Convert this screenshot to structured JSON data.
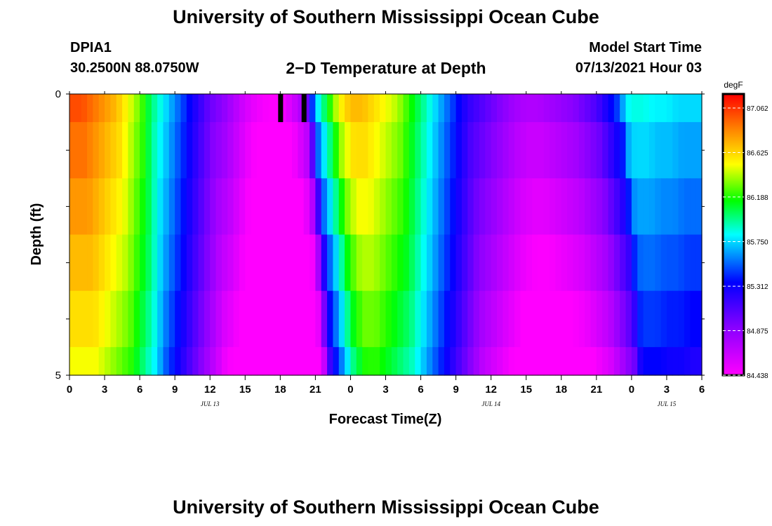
{
  "header": {
    "title": "University of Southern Mississippi Ocean Cube",
    "station": "DPIA1",
    "coords": "30.2500N  88.0750W",
    "plot_title": "2−D Temperature at Depth",
    "model_start_label": "Model Start Time",
    "model_start_value": "07/13/2021 Hour 03"
  },
  "footer": {
    "title": "University of Southern Mississippi Ocean Cube"
  },
  "chart_data": {
    "type": "heatmap",
    "title": "2−D Temperature at Depth",
    "xlabel": "Forecast Time(Z)",
    "ylabel": "Depth (ft)",
    "xlim": [
      0,
      54
    ],
    "ylim": [
      0,
      5
    ],
    "x_ticks": [
      0,
      3,
      6,
      9,
      12,
      15,
      18,
      21,
      24,
      27,
      30,
      33,
      36,
      39,
      42,
      45,
      48,
      51,
      54
    ],
    "x_tick_labels": [
      "0",
      "3",
      "6",
      "9",
      "12",
      "15",
      "18",
      "21",
      "0",
      "3",
      "6",
      "9",
      "12",
      "15",
      "18",
      "21",
      "0",
      "3",
      "6"
    ],
    "y_ticks": [
      0,
      5
    ],
    "y_tick_labels": [
      "0",
      "5"
    ],
    "date_labels": [
      {
        "x": 12,
        "text": "JUL 13"
      },
      {
        "x": 36,
        "text": "JUL 14"
      },
      {
        "x": 51,
        "text": "JUL 15"
      }
    ],
    "depth_bins": [
      0,
      0.5,
      1.5,
      2.5,
      3.5,
      4.5,
      5
    ],
    "colorbar": {
      "units": "degF",
      "min": 84.438,
      "max": 87.2,
      "tick_values": [
        87.062,
        86.625,
        86.188,
        85.75,
        85.312,
        84.875,
        84.438
      ],
      "tick_labels": [
        "87.062",
        "86.625",
        "86.188",
        "85.750",
        "85.312",
        "84.875",
        "84.438"
      ]
    },
    "grid": false,
    "legend": "right",
    "time_profile": {
      "hours": [
        0,
        1,
        2,
        3,
        4,
        5,
        6,
        7,
        8,
        9,
        10,
        11,
        12,
        13,
        14,
        15,
        16,
        17,
        18,
        19,
        20,
        20.5,
        21,
        22,
        23,
        24,
        25,
        26,
        27,
        28,
        29,
        30,
        31,
        32,
        33,
        34,
        35,
        36,
        37,
        38,
        39,
        40,
        41,
        42,
        43,
        44,
        45,
        46,
        47,
        47.5,
        48,
        49,
        50,
        51,
        52,
        53,
        54
      ],
      "temps": [
        87.0,
        87.0,
        86.9,
        86.8,
        86.7,
        86.5,
        86.3,
        86.0,
        85.8,
        85.6,
        85.4,
        85.2,
        85.0,
        84.9,
        84.75,
        84.6,
        84.5,
        84.45,
        84.45,
        84.6,
        84.8,
        85.2,
        85.7,
        86.1,
        86.5,
        86.7,
        86.7,
        86.6,
        86.5,
        86.4,
        86.2,
        86.0,
        85.8,
        85.6,
        85.4,
        85.2,
        85.1,
        85.0,
        84.9,
        84.8,
        84.75,
        84.75,
        84.8,
        84.85,
        84.9,
        85.0,
        85.1,
        85.3,
        85.5,
        85.8,
        85.85,
        85.85,
        85.8,
        85.8,
        85.75,
        85.75,
        85.75
      ]
    },
    "depth_offsets": [
      0.0,
      -0.1,
      -0.2,
      -0.3,
      -0.4,
      -0.5
    ],
    "phase_shift_hours": [
      0,
      0.3,
      0.6,
      0.9,
      1.1,
      1.3
    ],
    "missing_cells": [
      {
        "hour": 18,
        "depth_bin": 0
      },
      {
        "hour": 20,
        "depth_bin": 0
      }
    ]
  }
}
